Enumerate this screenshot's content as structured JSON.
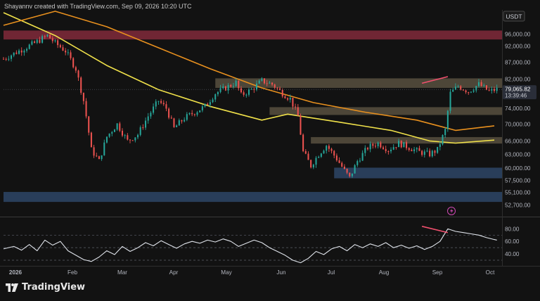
{
  "header": {
    "credit": "Shayannv created with TradingView.com, Sep 09, 2026 10:20 UTC",
    "currency": "USDT"
  },
  "footer": {
    "brand": "TradingView"
  },
  "colors": {
    "up": "#26a69a",
    "down": "#ef5350",
    "ma_short": "#f0e14a",
    "ma_long": "#e8901e",
    "rsi": "#dfe3ea",
    "divergence": "#f0506e",
    "zone_red": "#8b2c3e",
    "zone_tan": "#5e5442",
    "zone_blue": "#2f4a6e",
    "current_price_tag": "#2a2e39"
  },
  "chart_data": [
    {
      "type": "candlestick",
      "yscale": "log",
      "ylim": [
        51000,
        104000
      ],
      "y_ticks": [
        "96,000.00",
        "92,000.00",
        "87,000.00",
        "82,000.00",
        "74,000.00",
        "70,000.00",
        "66,000.00",
        "63,000.00",
        "60,000.00",
        "57,500.00",
        "55,100.00",
        "52,700.00"
      ],
      "x_ticks": [
        "2026",
        "Feb",
        "Mar",
        "Apr",
        "May",
        "Jun",
        "Jul",
        "Aug",
        "Sep",
        "Oct"
      ],
      "current_price": "79,065.82",
      "countdown": "13:39:46",
      "price_path": [
        [
          0,
          88000
        ],
        [
          6,
          90500
        ],
        [
          12,
          93000
        ],
        [
          17,
          95500
        ],
        [
          20,
          93000
        ],
        [
          24,
          90500
        ],
        [
          28,
          85000
        ],
        [
          31,
          76000
        ],
        [
          34,
          64000
        ],
        [
          37,
          61500
        ],
        [
          40,
          67000
        ],
        [
          44,
          70000
        ],
        [
          48,
          66000
        ],
        [
          52,
          67500
        ],
        [
          56,
          72000
        ],
        [
          60,
          76000
        ],
        [
          63,
          74000
        ],
        [
          66,
          69000
        ],
        [
          70,
          71500
        ],
        [
          74,
          73000
        ],
        [
          78,
          74500
        ],
        [
          82,
          78000
        ],
        [
          86,
          79500
        ],
        [
          90,
          81000
        ],
        [
          92,
          77500
        ],
        [
          96,
          79000
        ],
        [
          100,
          81500
        ],
        [
          104,
          80500
        ],
        [
          108,
          78000
        ],
        [
          111,
          76500
        ],
        [
          114,
          72000
        ],
        [
          116,
          63500
        ],
        [
          119,
          60500
        ],
        [
          122,
          63000
        ],
        [
          125,
          65000
        ],
        [
          129,
          62000
        ],
        [
          132,
          59500
        ],
        [
          134,
          58000
        ],
        [
          137,
          61500
        ],
        [
          141,
          64500
        ],
        [
          145,
          65500
        ],
        [
          149,
          64000
        ],
        [
          153,
          65500
        ],
        [
          157,
          64500
        ],
        [
          161,
          63500
        ],
        [
          165,
          63000
        ],
        [
          168,
          64000
        ],
        [
          171,
          68500
        ],
        [
          173,
          78000
        ],
        [
          176,
          80000
        ],
        [
          180,
          78500
        ],
        [
          184,
          80500
        ],
        [
          188,
          78500
        ],
        [
          191,
          79100
        ]
      ],
      "moving_averages": [
        {
          "name": "short",
          "color": "#f0e14a",
          "points": [
            [
              0,
              103500
            ],
            [
              20,
              95500
            ],
            [
              40,
              86000
            ],
            [
              60,
              79000
            ],
            [
              80,
              74500
            ],
            [
              100,
              71000
            ],
            [
              110,
              72500
            ],
            [
              130,
              70500
            ],
            [
              150,
              68500
            ],
            [
              165,
              66000
            ],
            [
              175,
              65500
            ],
            [
              190,
              66200
            ]
          ]
        },
        {
          "name": "long",
          "color": "#e8901e",
          "points": [
            [
              0,
              99000
            ],
            [
              20,
              104000
            ],
            [
              40,
              98500
            ],
            [
              60,
              91500
            ],
            [
              80,
              85000
            ],
            [
              100,
              79500
            ],
            [
              120,
              75500
            ],
            [
              140,
              73000
            ],
            [
              160,
              71000
            ],
            [
              175,
              68500
            ],
            [
              190,
              69600
            ]
          ]
        }
      ],
      "zones": [
        {
          "color": "zone_red",
          "low": 94200,
          "high": 97200,
          "x_start": 0,
          "x_end": 193
        },
        {
          "color": "zone_tan",
          "low": 79500,
          "high": 82200,
          "x_start": 82,
          "x_end": 193
        },
        {
          "color": "zone_tan",
          "low": 72300,
          "high": 74300,
          "x_start": 103,
          "x_end": 193
        },
        {
          "color": "zone_tan",
          "low": 65400,
          "high": 66900,
          "x_start": 119,
          "x_end": 193
        },
        {
          "color": "zone_blue",
          "low": 57900,
          "high": 60100,
          "x_start": 128,
          "x_end": 193
        },
        {
          "color": "zone_blue",
          "low": 53300,
          "high": 55200,
          "x_start": 0,
          "x_end": 193
        }
      ],
      "divergence_line": [
        [
          162,
          80800
        ],
        [
          172,
          82700
        ]
      ]
    },
    {
      "type": "line",
      "name": "RSI",
      "ylim": [
        30,
        95
      ],
      "y_ticks": [
        "80.00",
        "60.00",
        "40.00"
      ],
      "levels": [
        70,
        50,
        30
      ],
      "values": [
        [
          0,
          48
        ],
        [
          4,
          52
        ],
        [
          7,
          46
        ],
        [
          10,
          55
        ],
        [
          13,
          45
        ],
        [
          16,
          62
        ],
        [
          19,
          54
        ],
        [
          22,
          60
        ],
        [
          25,
          45
        ],
        [
          28,
          38
        ],
        [
          31,
          31
        ],
        [
          34,
          28
        ],
        [
          37,
          35
        ],
        [
          40,
          45
        ],
        [
          43,
          39
        ],
        [
          46,
          52
        ],
        [
          49,
          44
        ],
        [
          52,
          50
        ],
        [
          55,
          58
        ],
        [
          58,
          53
        ],
        [
          61,
          61
        ],
        [
          64,
          55
        ],
        [
          67,
          49
        ],
        [
          70,
          56
        ],
        [
          73,
          60
        ],
        [
          76,
          57
        ],
        [
          79,
          62
        ],
        [
          82,
          59
        ],
        [
          85,
          64
        ],
        [
          88,
          60
        ],
        [
          91,
          52
        ],
        [
          94,
          57
        ],
        [
          97,
          62
        ],
        [
          100,
          58
        ],
        [
          103,
          50
        ],
        [
          106,
          44
        ],
        [
          109,
          38
        ],
        [
          112,
          30
        ],
        [
          115,
          26
        ],
        [
          118,
          33
        ],
        [
          121,
          44
        ],
        [
          124,
          39
        ],
        [
          127,
          48
        ],
        [
          130,
          52
        ],
        [
          133,
          45
        ],
        [
          136,
          55
        ],
        [
          139,
          50
        ],
        [
          142,
          56
        ],
        [
          145,
          52
        ],
        [
          148,
          58
        ],
        [
          151,
          50
        ],
        [
          154,
          54
        ],
        [
          157,
          49
        ],
        [
          160,
          53
        ],
        [
          163,
          47
        ],
        [
          166,
          52
        ],
        [
          169,
          60
        ],
        [
          172,
          80
        ],
        [
          175,
          76
        ],
        [
          178,
          74
        ],
        [
          181,
          72
        ],
        [
          184,
          70
        ],
        [
          187,
          66
        ],
        [
          190,
          63
        ],
        [
          191,
          62
        ]
      ],
      "divergence_line": [
        [
          162,
          84
        ],
        [
          172,
          74
        ]
      ]
    }
  ]
}
